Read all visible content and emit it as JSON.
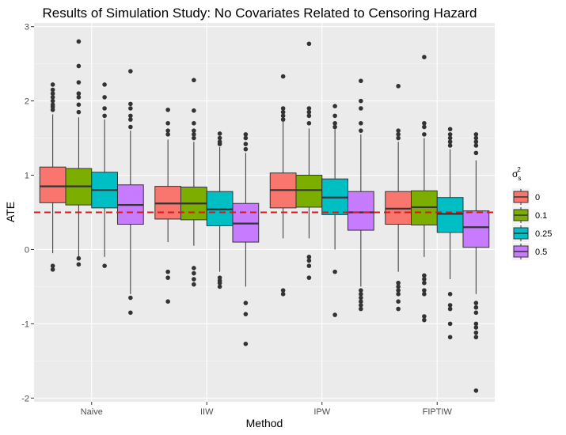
{
  "chart_data": {
    "type": "boxplot",
    "title": "Results of Simulation Study: No Covariates Related to Censoring Hazard",
    "xlabel": "Method",
    "ylabel": "ATE",
    "ylim": [
      -2.05,
      3.05
    ],
    "yticks": [
      -2,
      -1,
      0,
      1,
      2,
      3
    ],
    "reference_line": {
      "y": 0.5,
      "style": "dashed",
      "color": "#d7191c"
    },
    "categories": [
      "Naive",
      "IIW",
      "IPW",
      "FIPTIW"
    ],
    "legend": {
      "title_base": "σ",
      "title_sub": "s",
      "title_sup": "2",
      "position": "right"
    },
    "grid": true,
    "background": "#ebebeb",
    "series": [
      {
        "name": "0",
        "color": "#f8766d",
        "boxes": [
          {
            "whisker_low": -0.05,
            "q1": 0.63,
            "median": 0.85,
            "q3": 1.11,
            "whisker_high": 1.82,
            "outliers": [
              -0.22,
              -0.27,
              1.88,
              1.92,
              1.95,
              2.0,
              2.05,
              2.1,
              2.15,
              2.22
            ]
          },
          {
            "whisker_low": 0.1,
            "q1": 0.41,
            "median": 0.62,
            "q3": 0.85,
            "whisker_high": 1.48,
            "outliers": [
              -0.3,
              -0.38,
              -0.7,
              1.55,
              1.6,
              1.7,
              1.88
            ]
          },
          {
            "whisker_low": 0.15,
            "q1": 0.56,
            "median": 0.8,
            "q3": 1.03,
            "whisker_high": 1.72,
            "outliers": [
              -0.55,
              -0.6,
              1.75,
              1.8,
              1.85,
              1.9,
              2.33
            ]
          },
          {
            "whisker_low": -0.3,
            "q1": 0.34,
            "median": 0.55,
            "q3": 0.78,
            "whisker_high": 1.45,
            "outliers": [
              -0.45,
              -0.5,
              -0.55,
              -0.6,
              -0.7,
              -0.8,
              1.5,
              1.55,
              1.6,
              2.2
            ]
          }
        ]
      },
      {
        "name": "0.1",
        "color": "#7cae00",
        "boxes": [
          {
            "whisker_low": -0.1,
            "q1": 0.6,
            "median": 0.85,
            "q3": 1.09,
            "whisker_high": 1.78,
            "outliers": [
              -0.12,
              -0.2,
              1.85,
              1.95,
              2.05,
              2.1,
              2.25,
              2.47,
              2.8
            ]
          },
          {
            "whisker_low": 0.05,
            "q1": 0.4,
            "median": 0.62,
            "q3": 0.84,
            "whisker_high": 1.45,
            "outliers": [
              -0.25,
              -0.32,
              -0.4,
              -0.47,
              1.5,
              1.55,
              1.6,
              1.7,
              1.87,
              2.28
            ]
          },
          {
            "whisker_low": 0.15,
            "q1": 0.57,
            "median": 0.8,
            "q3": 1.0,
            "whisker_high": 1.63,
            "outliers": [
              -0.1,
              -0.15,
              -0.22,
              -0.38,
              1.7,
              1.8,
              1.85,
              1.9,
              2.77
            ]
          },
          {
            "whisker_low": -0.1,
            "q1": 0.33,
            "median": 0.57,
            "q3": 0.79,
            "whisker_high": 1.5,
            "outliers": [
              -0.35,
              -0.4,
              -0.45,
              -0.55,
              -0.6,
              -0.9,
              -0.95,
              1.55,
              1.65,
              1.7,
              2.59
            ]
          }
        ]
      },
      {
        "name": "0.25",
        "color": "#00bfc4",
        "boxes": [
          {
            "whisker_low": -0.1,
            "q1": 0.56,
            "median": 0.8,
            "q3": 1.04,
            "whisker_high": 1.75,
            "outliers": [
              -0.22,
              1.8,
              1.9,
              2.05,
              2.22
            ]
          },
          {
            "whisker_low": -0.3,
            "q1": 0.32,
            "median": 0.54,
            "q3": 0.78,
            "whisker_high": 1.38,
            "outliers": [
              -0.38,
              -0.42,
              -0.45,
              -0.5,
              1.42,
              1.45,
              1.5,
              1.56
            ]
          },
          {
            "whisker_low": 0.0,
            "q1": 0.47,
            "median": 0.7,
            "q3": 0.95,
            "whisker_high": 1.62,
            "outliers": [
              -0.3,
              -0.88,
              1.65,
              1.7,
              1.8,
              1.93
            ]
          },
          {
            "whisker_low": -0.4,
            "q1": 0.23,
            "median": 0.48,
            "q3": 0.7,
            "whisker_high": 1.35,
            "outliers": [
              -0.6,
              -0.75,
              -0.8,
              -1.0,
              -1.18,
              1.4,
              1.45,
              1.5,
              1.55,
              1.62
            ]
          }
        ]
      },
      {
        "name": "0.5",
        "color": "#c77cff",
        "boxes": [
          {
            "whisker_low": -0.6,
            "q1": 0.34,
            "median": 0.6,
            "q3": 0.87,
            "whisker_high": 1.6,
            "outliers": [
              -0.65,
              -0.85,
              1.65,
              1.75,
              1.8,
              1.9,
              1.96,
              2.4
            ]
          },
          {
            "whisker_low": -0.5,
            "q1": 0.1,
            "median": 0.35,
            "q3": 0.62,
            "whisker_high": 1.3,
            "outliers": [
              -0.72,
              -0.87,
              -1.27,
              1.35,
              1.42,
              1.5,
              1.55
            ]
          },
          {
            "whisker_low": -0.5,
            "q1": 0.26,
            "median": 0.5,
            "q3": 0.78,
            "whisker_high": 1.55,
            "outliers": [
              -0.55,
              -0.6,
              -0.65,
              -0.7,
              -0.75,
              -0.8,
              1.6,
              1.7,
              1.9,
              2.0,
              2.27
            ]
          },
          {
            "whisker_low": -0.6,
            "q1": 0.03,
            "median": 0.3,
            "q3": 0.52,
            "whisker_high": 1.2,
            "outliers": [
              -0.72,
              -0.78,
              -0.85,
              -1.0,
              -1.05,
              -1.12,
              -1.18,
              -1.9,
              1.3,
              1.4,
              1.45,
              1.5,
              1.55
            ]
          }
        ]
      }
    ]
  }
}
